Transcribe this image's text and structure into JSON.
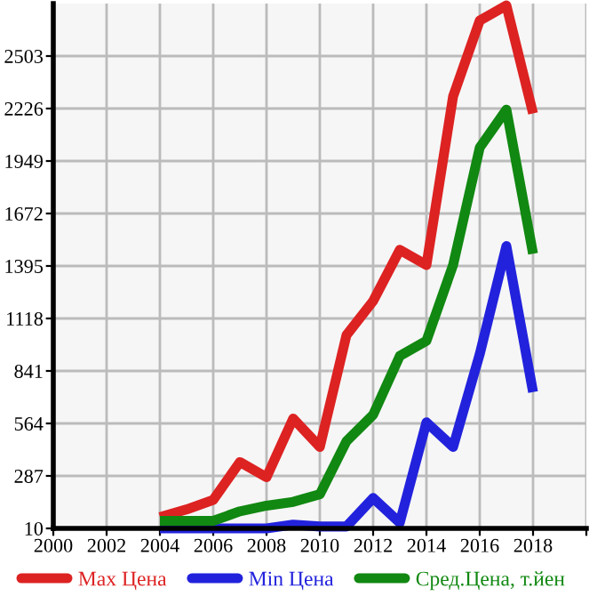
{
  "chart_data": {
    "type": "line",
    "x": [
      2004,
      2005,
      2006,
      2007,
      2008,
      2009,
      2010,
      2011,
      2012,
      2013,
      2014,
      2015,
      2016,
      2017,
      2018
    ],
    "series": [
      {
        "name": "Max Цена",
        "color": "#dd2222",
        "values": [
          70,
          110,
          160,
          360,
          280,
          590,
          440,
          1030,
          1210,
          1480,
          1400,
          2290,
          2690,
          2770,
          2200
        ]
      },
      {
        "name": "Min Цена",
        "color": "#2222dd",
        "values": [
          10,
          10,
          10,
          10,
          10,
          30,
          20,
          20,
          170,
          40,
          570,
          440,
          930,
          1500,
          730
        ]
      },
      {
        "name": "Сред.Цена, т.йен",
        "color": "#118811",
        "values": [
          50,
          50,
          50,
          100,
          130,
          150,
          190,
          470,
          610,
          920,
          1000,
          1400,
          2020,
          2220,
          1460
        ]
      }
    ],
    "xlim": [
      2000,
      2020
    ],
    "xticks": [
      2000,
      2002,
      2004,
      2006,
      2008,
      2010,
      2012,
      2014,
      2016,
      2018,
      {
        "value": 2020,
        "label": null
      }
    ],
    "ylim": [
      10,
      2780
    ],
    "yticks": [
      10,
      287,
      564,
      841,
      1118,
      1395,
      1672,
      1949,
      2226,
      2503
    ],
    "grid": true,
    "legend": "bottom",
    "marker": "none",
    "line_style": "solid"
  }
}
